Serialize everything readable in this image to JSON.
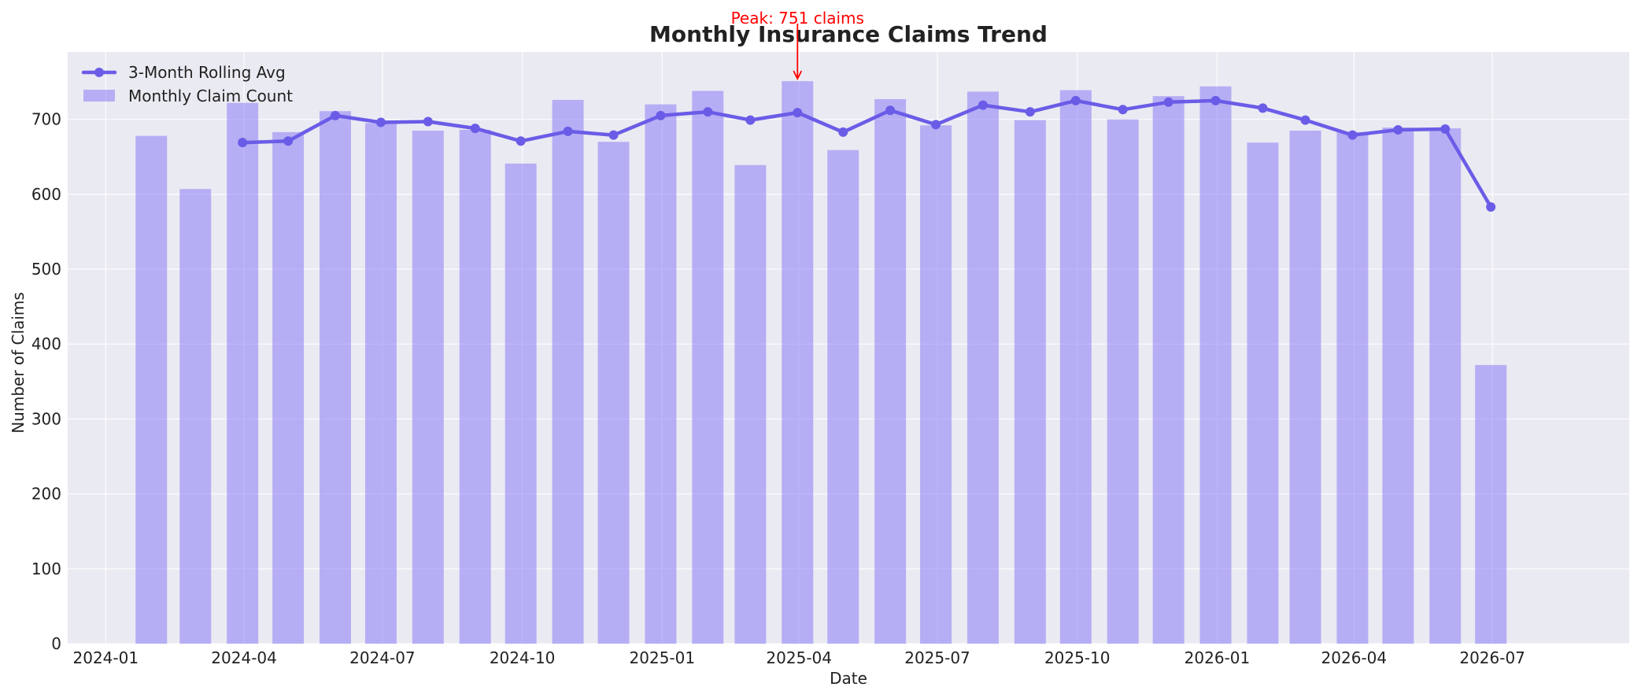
{
  "chart_data": {
    "type": "bar",
    "title": "Monthly Insurance Claims Trend",
    "xlabel": "Date",
    "ylabel": "Number of Claims",
    "ylim": [
      0,
      790
    ],
    "yticks": [
      0,
      100,
      200,
      300,
      400,
      500,
      600,
      700
    ],
    "xticks": [
      "2024-01",
      "2024-04",
      "2024-07",
      "2024-10",
      "2025-01",
      "2025-04",
      "2025-07",
      "2025-10",
      "2026-01",
      "2026-04",
      "2026-07"
    ],
    "grid": true,
    "legend_position": "top-left",
    "colors": {
      "bar": "#8a7cf5",
      "line": "#6b5ce7",
      "background": "#eaeaf2",
      "annotation": "#ff0000"
    },
    "series": [
      {
        "name": "Monthly Claim Count",
        "type": "bar",
        "x": [
          "2024-01-31",
          "2024-02-29",
          "2024-03-31",
          "2024-04-30",
          "2024-05-31",
          "2024-06-30",
          "2024-07-31",
          "2024-08-31",
          "2024-09-30",
          "2024-10-31",
          "2024-11-30",
          "2024-12-31",
          "2025-01-31",
          "2025-02-28",
          "2025-03-31",
          "2025-04-30",
          "2025-05-31",
          "2025-06-30",
          "2025-07-31",
          "2025-08-31",
          "2025-09-30",
          "2025-10-31",
          "2025-11-30",
          "2025-12-31",
          "2026-01-31",
          "2026-02-28",
          "2026-03-31",
          "2026-04-30",
          "2026-05-31",
          "2026-06-30"
        ],
        "values": [
          678,
          607,
          722,
          683,
          711,
          695,
          685,
          686,
          641,
          726,
          670,
          720,
          738,
          639,
          751,
          659,
          727,
          692,
          737,
          699,
          739,
          700,
          731,
          744,
          669,
          685,
          683,
          689,
          688,
          372
        ]
      },
      {
        "name": "3-Month Rolling Avg",
        "type": "line",
        "x": [
          "2024-03-31",
          "2024-04-30",
          "2024-05-31",
          "2024-06-30",
          "2024-07-31",
          "2024-08-31",
          "2024-09-30",
          "2024-10-31",
          "2024-11-30",
          "2024-12-31",
          "2025-01-31",
          "2025-02-28",
          "2025-03-31",
          "2025-04-30",
          "2025-05-31",
          "2025-06-30",
          "2025-07-31",
          "2025-08-31",
          "2025-09-30",
          "2025-10-31",
          "2025-11-30",
          "2025-12-31",
          "2026-01-31",
          "2026-02-28",
          "2026-03-31",
          "2026-04-30",
          "2026-05-31",
          "2026-06-30"
        ],
        "values": [
          669,
          671,
          705,
          696,
          697,
          688,
          671,
          684,
          679,
          705,
          710,
          699,
          709,
          683,
          712,
          693,
          719,
          710,
          725,
          713,
          723,
          725,
          715,
          699,
          679,
          686,
          687,
          583
        ]
      }
    ],
    "annotations": [
      {
        "text": "Peak: 751 claims",
        "x": "2025-03-31",
        "y": 751
      }
    ]
  }
}
